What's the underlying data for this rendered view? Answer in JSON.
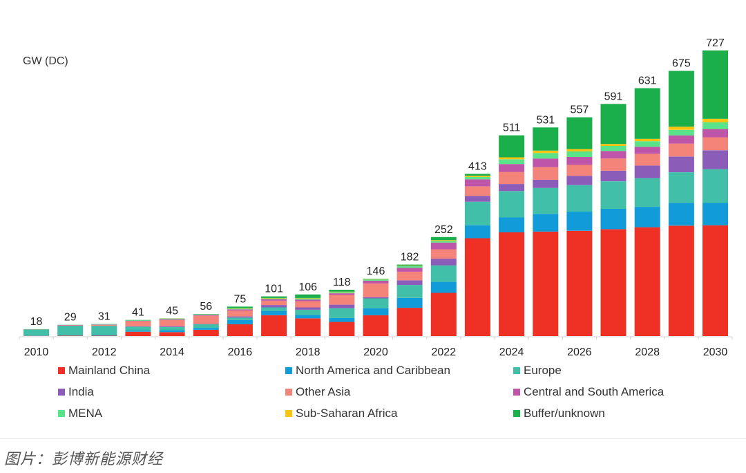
{
  "chart_data": {
    "type": "bar",
    "stacked": true,
    "title": "",
    "ylabel": "GW (DC)",
    "xlabel": "",
    "ylim": [
      0,
      727
    ],
    "grid": false,
    "legend_position": "bottom",
    "categories": [
      "2010",
      "2011",
      "2012",
      "2013",
      "2014",
      "2015",
      "2016",
      "2017",
      "2018",
      "2019",
      "2020",
      "2021",
      "2022",
      "2023",
      "2024",
      "2025",
      "2026",
      "2027",
      "2028",
      "2029",
      "2030"
    ],
    "x_tick_labels": [
      "2010",
      "",
      "2012",
      "",
      "2014",
      "",
      "2016",
      "",
      "2018",
      "",
      "2020",
      "",
      "2022",
      "",
      "2024",
      "",
      "2026",
      "",
      "2028",
      "",
      "2030"
    ],
    "totals": [
      18,
      29,
      31,
      41,
      45,
      56,
      75,
      101,
      106,
      118,
      146,
      182,
      252,
      413,
      511,
      531,
      557,
      591,
      631,
      675,
      727
    ],
    "series": [
      {
        "name": "Mainland China",
        "color": "#ee3124",
        "values": [
          0.5,
          1,
          1,
          11,
          10,
          16,
          30,
          53,
          45,
          36,
          53,
          72,
          110,
          249,
          264,
          266,
          268,
          272,
          277,
          281,
          282
        ]
      },
      {
        "name": "North America and Caribbean",
        "color": "#119bd9",
        "values": [
          0.5,
          0.5,
          2,
          3,
          5,
          5,
          11,
          11,
          9,
          10,
          18,
          25,
          28,
          33,
          38,
          45,
          49,
          52,
          52,
          58,
          57
        ]
      },
      {
        "name": "Europe",
        "color": "#42bfa8",
        "values": [
          16,
          25,
          23,
          10,
          8,
          9,
          6,
          9,
          13,
          25,
          25,
          33,
          42,
          60,
          67,
          66,
          67,
          70,
          73,
          78,
          86
        ]
      },
      {
        "name": "India",
        "color": "#8b5db8",
        "values": [
          0,
          0,
          0.5,
          1,
          2,
          1,
          3,
          6,
          6,
          9,
          3,
          12,
          17,
          15,
          18,
          21,
          24,
          27,
          32,
          40,
          48
        ]
      },
      {
        "name": "Other Asia",
        "color": "#f4837a",
        "values": [
          0.5,
          1,
          2,
          13,
          16,
          21,
          15,
          11,
          16,
          25,
          35,
          22,
          24,
          24,
          31,
          32,
          28,
          31,
          30,
          33,
          33
        ]
      },
      {
        "name": "Central and South America",
        "color": "#bf55a8",
        "values": [
          0,
          1,
          1,
          1,
          2,
          2,
          3,
          4,
          4,
          4,
          7,
          10,
          17,
          18,
          20,
          22,
          20,
          19,
          18,
          21,
          21
        ]
      },
      {
        "name": "MENA",
        "color": "#5be38a",
        "values": [
          0.5,
          0.5,
          1,
          1,
          1,
          1,
          2,
          2,
          3,
          3,
          3,
          4,
          4,
          6,
          12,
          14,
          14,
          13,
          14,
          14,
          17
        ]
      },
      {
        "name": "Sub-Saharan Africa",
        "color": "#fbc40e",
        "values": [
          0,
          0,
          0,
          0,
          0.5,
          0,
          1,
          1,
          1,
          1,
          1,
          1,
          2,
          3,
          5,
          6,
          6,
          5,
          6,
          8,
          9
        ]
      },
      {
        "name": "Buffer/unknown",
        "color": "#1baf4c",
        "values": [
          0,
          0,
          0.5,
          1,
          0.5,
          1,
          4,
          4,
          9,
          5,
          1,
          3,
          8,
          5,
          56,
          59,
          81,
          102,
          129,
          142,
          174
        ]
      }
    ]
  },
  "legend": {
    "items": [
      {
        "label": "Mainland China",
        "color": "#ee3124"
      },
      {
        "label": "North America and Caribbean",
        "color": "#119bd9"
      },
      {
        "label": "Europe",
        "color": "#42bfa8"
      },
      {
        "label": "India",
        "color": "#8b5db8"
      },
      {
        "label": "Other Asia",
        "color": "#f4837a"
      },
      {
        "label": "Central and South America",
        "color": "#bf55a8"
      },
      {
        "label": "MENA",
        "color": "#5be38a"
      },
      {
        "label": "Sub-Saharan Africa",
        "color": "#fbc40e"
      },
      {
        "label": "Buffer/unknown",
        "color": "#1baf4c"
      }
    ]
  },
  "caption": "图片：彭博新能源财经"
}
